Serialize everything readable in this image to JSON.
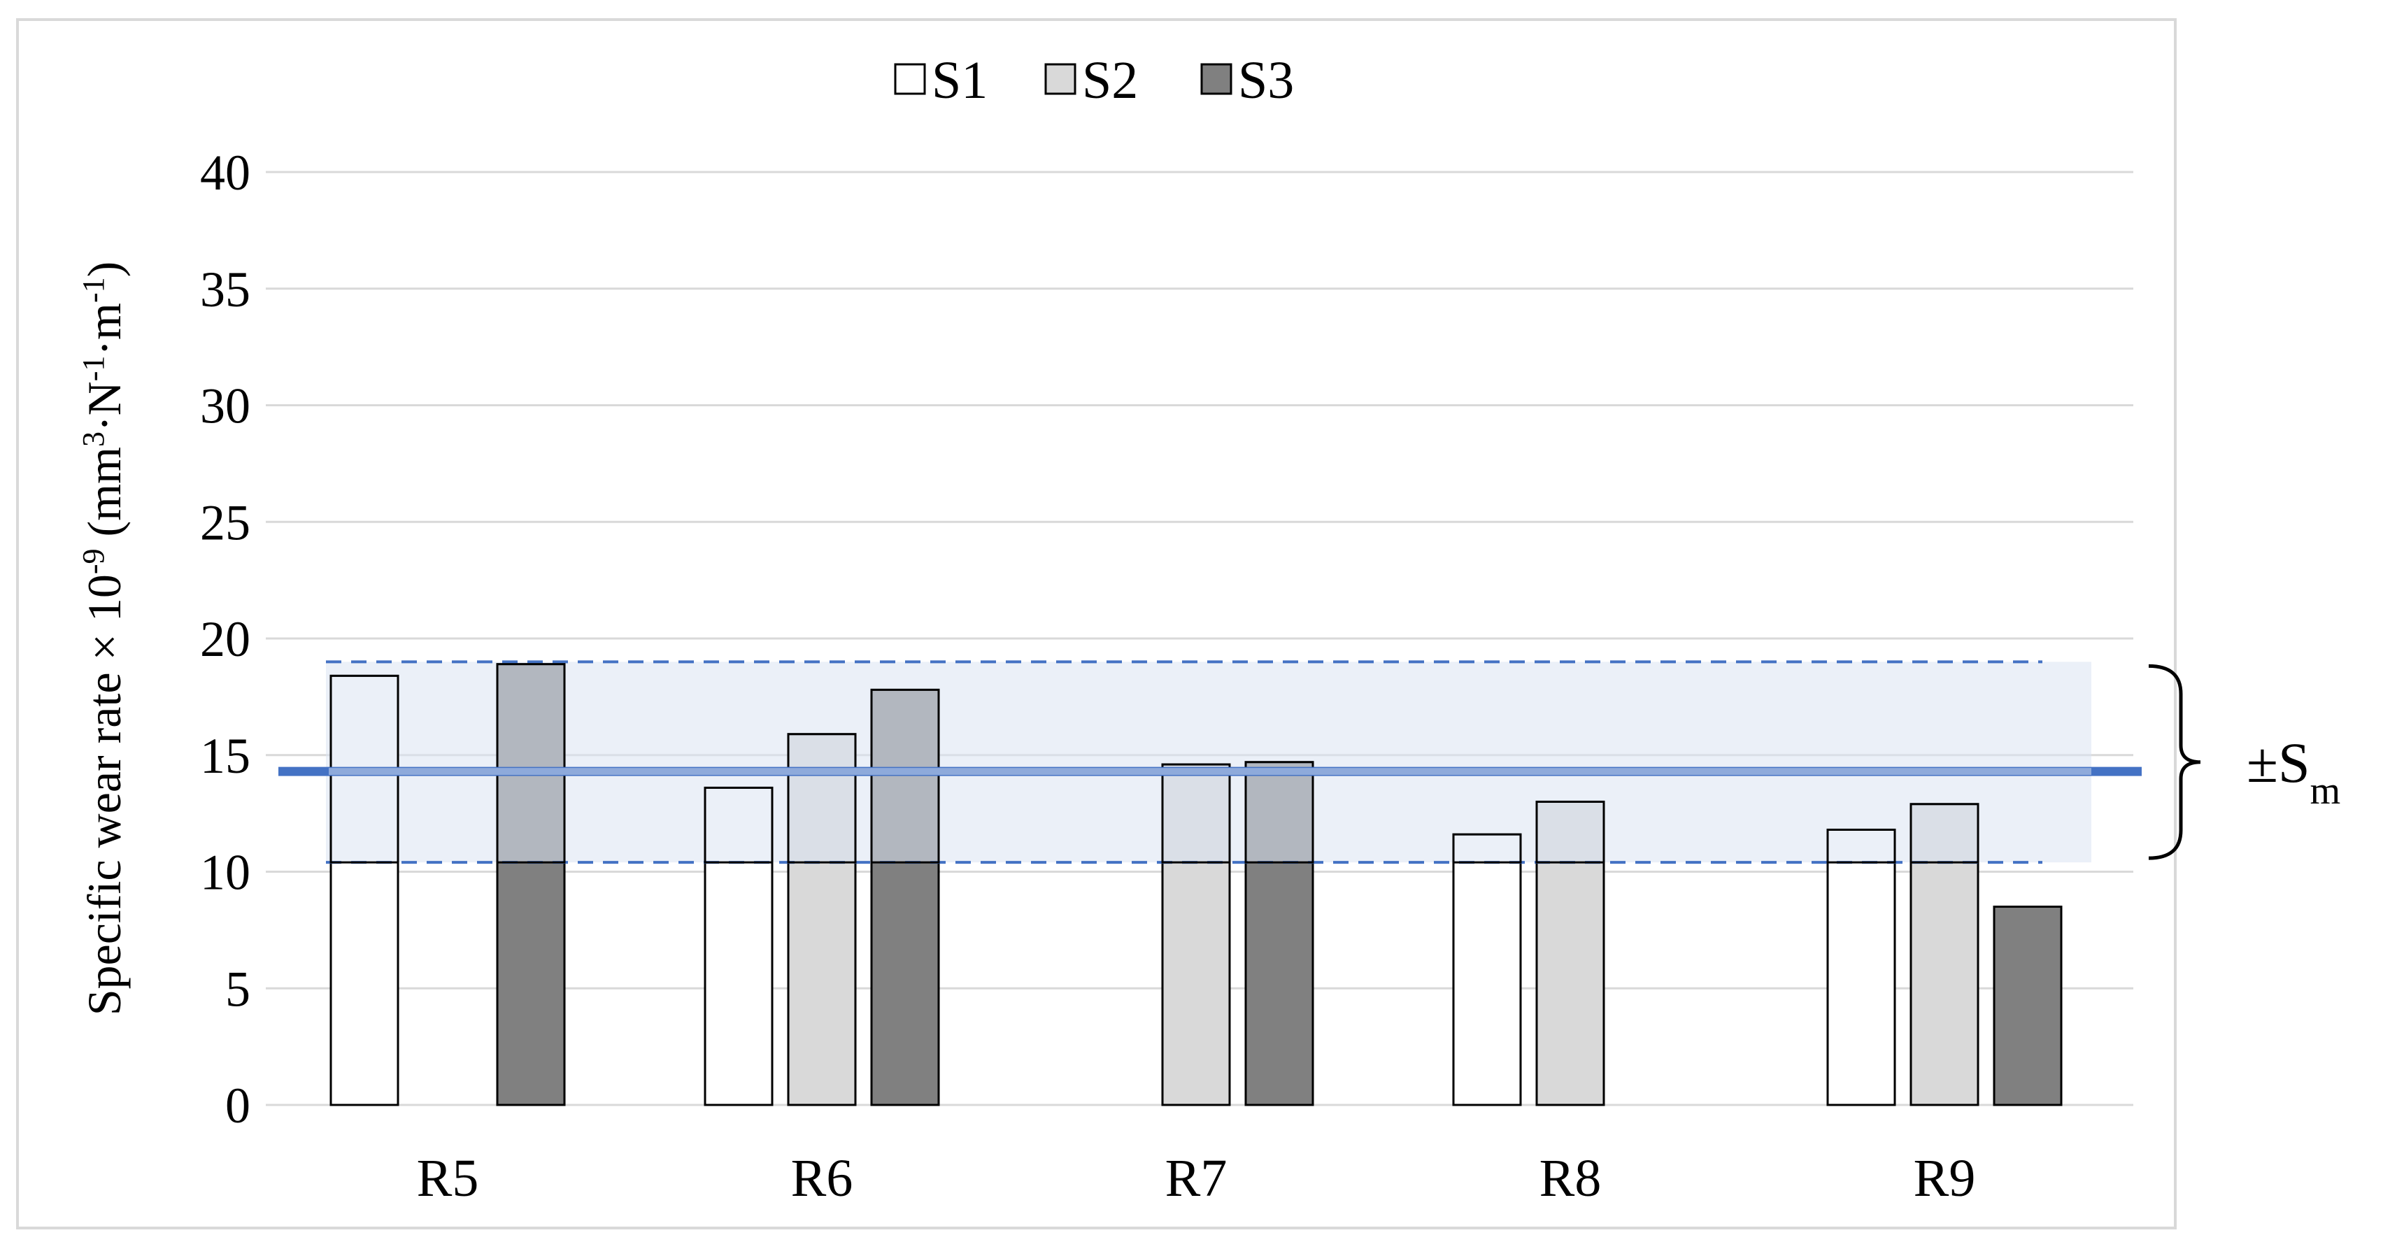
{
  "chart_data": {
    "type": "bar",
    "categories": [
      "R5",
      "R6",
      "R7",
      "R8",
      "R9"
    ],
    "series": [
      {
        "name": "S1",
        "values": [
          18.4,
          13.6,
          null,
          11.6,
          11.8
        ],
        "color": "#ffffff"
      },
      {
        "name": "S2",
        "values": [
          null,
          15.9,
          14.6,
          13.0,
          12.9
        ],
        "color": "#d9d9d9"
      },
      {
        "name": "S3",
        "values": [
          18.9,
          17.8,
          14.7,
          null,
          8.5
        ],
        "color": "#808080"
      }
    ],
    "ylim": [
      0,
      40
    ],
    "yticks": [
      "0",
      "5",
      "10",
      "15",
      "20",
      "25",
      "30",
      "35",
      "40"
    ],
    "ylabel": {
      "base": "Specific wear rate × 10",
      "exp": "-9",
      "unit_open": " (mm",
      "unit_exp3": "3",
      "unit_N": "·N",
      "unit_exp_n": "-1",
      "unit_m": "·m",
      "unit_exp_m": "-1",
      "unit_close": ")"
    },
    "mean": 14.3,
    "band": [
      10.4,
      19.0
    ],
    "band_label": {
      "pm": "±S",
      "sub": "m"
    },
    "grid": true,
    "legend_position": "top-center",
    "colors": {
      "mean_line": "#4472c4",
      "mean_line_inner": "#8eaadb",
      "band_fill": "#dae3f3",
      "gridline": "#d9d9d9",
      "bar_stroke": "#000000"
    }
  }
}
